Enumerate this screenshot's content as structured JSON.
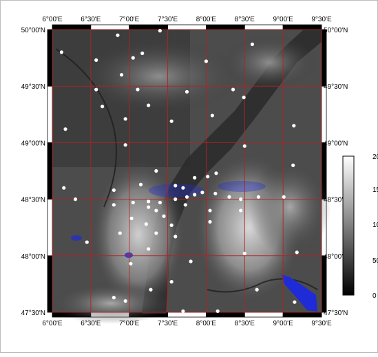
{
  "map": {
    "lon_labels": [
      "6°00'E",
      "6°30'E",
      "7°00'E",
      "7°30'E",
      "8°00'E",
      "8°30'E",
      "9°00'E",
      "9°30'E"
    ],
    "lat_labels": [
      "50°00'N",
      "49°30'N",
      "49°00'N",
      "48°30'N",
      "48°00'N",
      "47°30'N"
    ],
    "lon_range_deg": [
      6.0,
      9.5
    ],
    "lat_range_deg": [
      47.5,
      50.0
    ],
    "graticule_color": "#b22222",
    "station_color": "#ffffff",
    "water_color": "#1f2bd6",
    "stations": [
      [
        6.12,
        49.8
      ],
      [
        6.85,
        49.95
      ],
      [
        7.4,
        49.99
      ],
      [
        7.05,
        49.75
      ],
      [
        6.57,
        49.73
      ],
      [
        6.9,
        49.6
      ],
      [
        7.17,
        49.79
      ],
      [
        8.0,
        49.72
      ],
      [
        8.6,
        49.87
      ],
      [
        6.57,
        49.47
      ],
      [
        7.11,
        49.47
      ],
      [
        7.75,
        49.45
      ],
      [
        8.35,
        49.47
      ],
      [
        8.49,
        49.4
      ],
      [
        6.65,
        49.32
      ],
      [
        7.25,
        49.33
      ],
      [
        6.95,
        49.21
      ],
      [
        7.55,
        49.19
      ],
      [
        8.08,
        49.24
      ],
      [
        6.17,
        49.12
      ],
      [
        9.14,
        49.15
      ],
      [
        6.95,
        48.98
      ],
      [
        8.5,
        48.97
      ],
      [
        7.35,
        48.75
      ],
      [
        7.85,
        48.69
      ],
      [
        8.02,
        48.7
      ],
      [
        8.13,
        48.73
      ],
      [
        9.13,
        48.8
      ],
      [
        6.15,
        48.6
      ],
      [
        6.8,
        48.58
      ],
      [
        7.15,
        48.63
      ],
      [
        7.6,
        48.62
      ],
      [
        7.7,
        48.6
      ],
      [
        7.73,
        48.45
      ],
      [
        7.85,
        48.54
      ],
      [
        7.95,
        48.56
      ],
      [
        8.12,
        48.55
      ],
      [
        8.3,
        48.52
      ],
      [
        8.45,
        48.5
      ],
      [
        8.68,
        48.52
      ],
      [
        9.01,
        48.52
      ],
      [
        6.3,
        48.5
      ],
      [
        6.8,
        48.45
      ],
      [
        7.05,
        48.47
      ],
      [
        7.25,
        48.43
      ],
      [
        7.4,
        48.47
      ],
      [
        7.6,
        48.5
      ],
      [
        7.75,
        48.52
      ],
      [
        8.05,
        48.4
      ],
      [
        8.45,
        48.4
      ],
      [
        7.25,
        48.48
      ],
      [
        7.35,
        48.4
      ],
      [
        7.45,
        48.35
      ],
      [
        7.03,
        48.33
      ],
      [
        7.22,
        48.28
      ],
      [
        7.55,
        48.27
      ],
      [
        8.05,
        48.3
      ],
      [
        6.88,
        48.2
      ],
      [
        7.35,
        48.2
      ],
      [
        7.6,
        48.17
      ],
      [
        6.45,
        48.12
      ],
      [
        7.25,
        48.06
      ],
      [
        8.5,
        48.02
      ],
      [
        9.18,
        48.03
      ],
      [
        7.8,
        47.95
      ],
      [
        7.02,
        47.93
      ],
      [
        7.55,
        47.77
      ],
      [
        7.28,
        47.7
      ],
      [
        8.66,
        47.7
      ],
      [
        6.8,
        47.63
      ],
      [
        6.95,
        47.6
      ],
      [
        9.15,
        47.59
      ],
      [
        7.7,
        47.51
      ],
      [
        8.15,
        47.51
      ]
    ]
  }
}
